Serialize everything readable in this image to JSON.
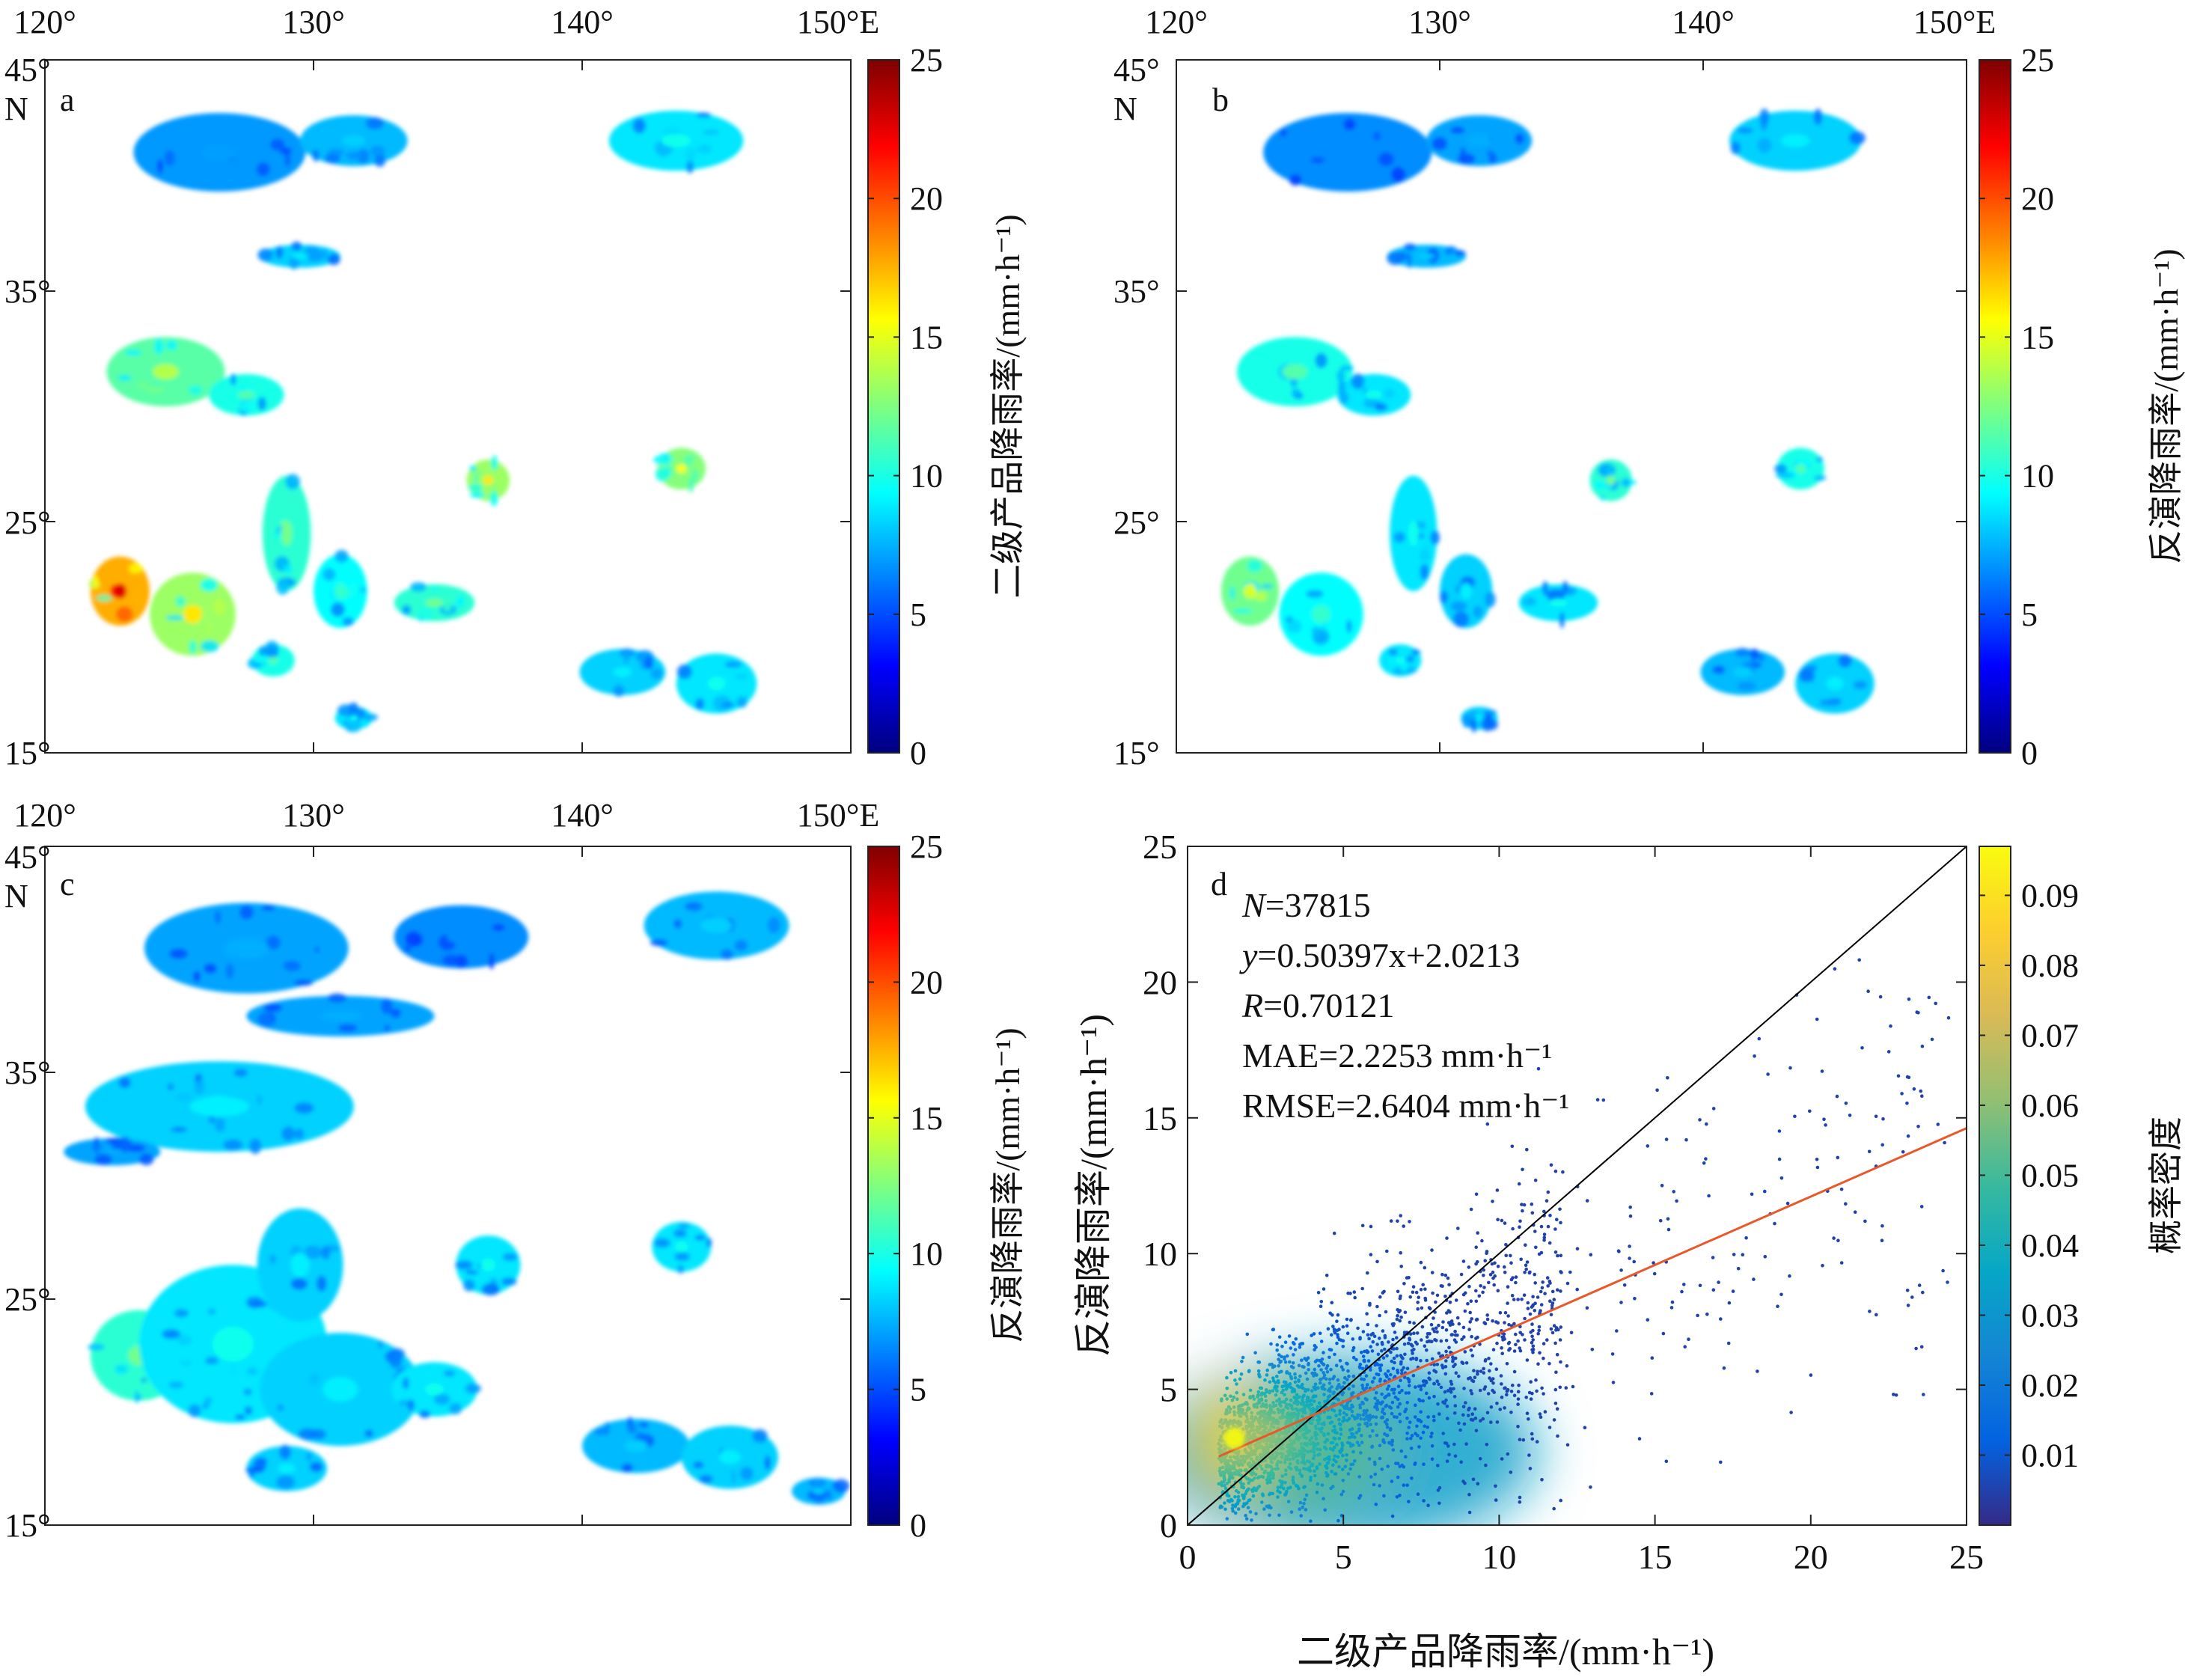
{
  "colormap_jet": [
    "#00007f",
    "#0000ff",
    "#007fff",
    "#00ffff",
    "#7fff7f",
    "#ffff00",
    "#ff7f00",
    "#ff0000",
    "#7f0000"
  ],
  "colormap_parula": [
    "#352a87",
    "#0363e1",
    "#1485d4",
    "#06a7c6",
    "#38b99e",
    "#92bf73",
    "#d9ba56",
    "#fcce2e",
    "#f9fb0e"
  ],
  "fit_line_color": "#e8582b",
  "chart_data": [
    {
      "panel": "a",
      "type": "heatmap",
      "panel_label": "a",
      "x_ticks": [
        "120°",
        "130°",
        "140°",
        "150°E"
      ],
      "y_ticks": [
        "45°",
        "35°",
        "25°",
        "15°"
      ],
      "y_top_unit": "N",
      "xlim": [
        120,
        150
      ],
      "ylim": [
        15,
        45
      ],
      "colorbar": {
        "label": "二级产品降雨率/(mm·h⁻¹)",
        "ticks": [
          "0",
          "5",
          "10",
          "15",
          "20",
          "25"
        ],
        "range": [
          0,
          25
        ],
        "colormap": "jet"
      },
      "rain_cells": [
        {
          "lon": 126.5,
          "lat": 41.0,
          "rlon": 3.2,
          "rlat": 1.7,
          "rate": 2.5
        },
        {
          "lon": 131.5,
          "lat": 41.5,
          "rlon": 2.0,
          "rlat": 1.1,
          "rate": 4.0
        },
        {
          "lon": 143.5,
          "lat": 41.5,
          "rlon": 2.5,
          "rlat": 1.3,
          "rate": 6.0
        },
        {
          "lon": 124.5,
          "lat": 31.5,
          "rlon": 2.2,
          "rlat": 1.5,
          "rate": 11.0
        },
        {
          "lon": 127.5,
          "lat": 30.5,
          "rlon": 1.4,
          "rlat": 0.9,
          "rate": 8.0
        },
        {
          "lon": 129.5,
          "lat": 36.5,
          "rlon": 1.5,
          "rlat": 0.5,
          "rate": 5.0
        },
        {
          "lon": 136.5,
          "lat": 26.8,
          "rlon": 0.8,
          "rlat": 0.9,
          "rate": 14.0
        },
        {
          "lon": 143.7,
          "lat": 27.3,
          "rlon": 0.9,
          "rlat": 0.9,
          "rate": 13.0
        },
        {
          "lon": 122.8,
          "lat": 22.0,
          "rlon": 1.1,
          "rlat": 1.5,
          "rate": 22.0
        },
        {
          "lon": 125.5,
          "lat": 21.0,
          "rlon": 1.6,
          "rlat": 1.8,
          "rate": 14.0
        },
        {
          "lon": 129.0,
          "lat": 24.5,
          "rlon": 0.9,
          "rlat": 2.5,
          "rate": 9.0
        },
        {
          "lon": 131.0,
          "lat": 22.0,
          "rlon": 1.0,
          "rlat": 1.6,
          "rate": 7.0
        },
        {
          "lon": 134.5,
          "lat": 21.5,
          "rlon": 1.5,
          "rlat": 0.8,
          "rate": 9.0
        },
        {
          "lon": 141.5,
          "lat": 18.5,
          "rlon": 1.6,
          "rlat": 1.0,
          "rate": 5.0
        },
        {
          "lon": 145.0,
          "lat": 18.0,
          "rlon": 1.5,
          "rlat": 1.3,
          "rate": 6.0
        },
        {
          "lon": 128.5,
          "lat": 19.0,
          "rlon": 0.8,
          "rlat": 0.7,
          "rate": 8.0
        },
        {
          "lon": 131.5,
          "lat": 16.5,
          "rlon": 0.7,
          "rlat": 0.5,
          "rate": 6.0
        }
      ]
    },
    {
      "panel": "b",
      "type": "heatmap",
      "panel_label": "b",
      "x_ticks": [
        "120°",
        "130°",
        "140°",
        "150°E"
      ],
      "y_ticks": [
        "45°",
        "35°",
        "25°",
        "15°"
      ],
      "y_top_unit": "N",
      "xlim": [
        120,
        150
      ],
      "ylim": [
        15,
        45
      ],
      "colorbar": {
        "label": "反演降雨率/(mm·h⁻¹)",
        "ticks": [
          "0",
          "5",
          "10",
          "15",
          "20",
          "25"
        ],
        "range": [
          0,
          25
        ],
        "colormap": "jet"
      },
      "rain_cells": [
        {
          "lon": 126.5,
          "lat": 41.0,
          "rlon": 3.2,
          "rlat": 1.7,
          "rate": 2.0
        },
        {
          "lon": 131.5,
          "lat": 41.5,
          "rlon": 2.0,
          "rlat": 1.1,
          "rate": 3.0
        },
        {
          "lon": 143.5,
          "lat": 41.5,
          "rlon": 2.5,
          "rlat": 1.3,
          "rate": 5.0
        },
        {
          "lon": 124.5,
          "lat": 31.5,
          "rlon": 2.2,
          "rlat": 1.5,
          "rate": 8.0
        },
        {
          "lon": 127.5,
          "lat": 30.5,
          "rlon": 1.4,
          "rlat": 0.9,
          "rate": 6.0
        },
        {
          "lon": 129.5,
          "lat": 36.5,
          "rlon": 1.5,
          "rlat": 0.5,
          "rate": 4.0
        },
        {
          "lon": 136.5,
          "lat": 26.8,
          "rlon": 0.8,
          "rlat": 0.9,
          "rate": 9.0
        },
        {
          "lon": 143.7,
          "lat": 27.3,
          "rlon": 0.9,
          "rlat": 0.9,
          "rate": 8.0
        },
        {
          "lon": 122.8,
          "lat": 22.0,
          "rlon": 1.1,
          "rlat": 1.5,
          "rate": 12.0
        },
        {
          "lon": 125.5,
          "lat": 21.0,
          "rlon": 1.6,
          "rlat": 1.8,
          "rate": 7.0
        },
        {
          "lon": 129.0,
          "lat": 24.5,
          "rlon": 0.9,
          "rlat": 2.5,
          "rate": 6.0
        },
        {
          "lon": 131.0,
          "lat": 22.0,
          "rlon": 1.0,
          "rlat": 1.6,
          "rate": 5.0
        },
        {
          "lon": 134.5,
          "lat": 21.5,
          "rlon": 1.5,
          "rlat": 0.8,
          "rate": 6.0
        },
        {
          "lon": 141.5,
          "lat": 18.5,
          "rlon": 1.6,
          "rlat": 1.0,
          "rate": 4.0
        },
        {
          "lon": 145.0,
          "lat": 18.0,
          "rlon": 1.5,
          "rlat": 1.3,
          "rate": 5.0
        },
        {
          "lon": 128.5,
          "lat": 19.0,
          "rlon": 0.8,
          "rlat": 0.7,
          "rate": 6.0
        },
        {
          "lon": 131.5,
          "lat": 16.5,
          "rlon": 0.7,
          "rlat": 0.5,
          "rate": 5.0
        }
      ]
    },
    {
      "panel": "c",
      "type": "heatmap",
      "panel_label": "c",
      "x_ticks": [
        "120°",
        "130°",
        "140°",
        "150°E"
      ],
      "y_ticks": [
        "45°",
        "35°",
        "25°",
        "15°"
      ],
      "y_top_unit": "N",
      "xlim": [
        120,
        150
      ],
      "ylim": [
        15,
        45
      ],
      "colorbar": {
        "label": "反演降雨率/(mm·h⁻¹)",
        "ticks": [
          "0",
          "5",
          "10",
          "15",
          "20",
          "25"
        ],
        "range": [
          0,
          25
        ],
        "colormap": "jet"
      },
      "rain_cells": [
        {
          "lon": 127.5,
          "lat": 40.5,
          "rlon": 3.8,
          "rlat": 2.0,
          "rate": 3.0
        },
        {
          "lon": 135.5,
          "lat": 41.0,
          "rlon": 2.5,
          "rlat": 1.4,
          "rate": 2.0
        },
        {
          "lon": 145.0,
          "lat": 41.5,
          "rlon": 2.7,
          "rlat": 1.5,
          "rate": 4.0
        },
        {
          "lon": 126.5,
          "lat": 33.5,
          "rlon": 5.0,
          "rlat": 2.0,
          "rate": 5.0
        },
        {
          "lon": 131.0,
          "lat": 37.5,
          "rlon": 3.5,
          "rlat": 0.9,
          "rate": 3.0
        },
        {
          "lon": 122.5,
          "lat": 31.5,
          "rlon": 1.8,
          "rlat": 0.6,
          "rate": 3.0
        },
        {
          "lon": 136.5,
          "lat": 26.5,
          "rlon": 1.2,
          "rlat": 1.3,
          "rate": 6.0
        },
        {
          "lon": 143.7,
          "lat": 27.3,
          "rlon": 1.1,
          "rlat": 1.1,
          "rate": 6.0
        },
        {
          "lon": 123.5,
          "lat": 22.5,
          "rlon": 1.8,
          "rlat": 2.0,
          "rate": 9.0
        },
        {
          "lon": 127.0,
          "lat": 23.0,
          "rlon": 3.5,
          "rlat": 3.5,
          "rate": 6.0
        },
        {
          "lon": 131.0,
          "lat": 21.0,
          "rlon": 3.0,
          "rlat": 2.5,
          "rate": 5.0
        },
        {
          "lon": 129.5,
          "lat": 26.5,
          "rlon": 1.6,
          "rlat": 2.5,
          "rate": 5.0
        },
        {
          "lon": 134.5,
          "lat": 21.0,
          "rlon": 1.6,
          "rlat": 1.2,
          "rate": 6.0
        },
        {
          "lon": 142.0,
          "lat": 18.5,
          "rlon": 2.0,
          "rlat": 1.2,
          "rate": 4.0
        },
        {
          "lon": 145.5,
          "lat": 18.0,
          "rlon": 1.8,
          "rlat": 1.4,
          "rate": 5.0
        },
        {
          "lon": 148.8,
          "lat": 16.5,
          "rlon": 1.0,
          "rlat": 0.6,
          "rate": 4.0
        },
        {
          "lon": 129.0,
          "lat": 17.5,
          "rlon": 1.5,
          "rlat": 1.0,
          "rate": 5.0
        }
      ]
    },
    {
      "panel": "d",
      "type": "scatter",
      "panel_label": "d",
      "xlabel": "二级产品降雨率/(mm·h⁻¹)",
      "ylabel": "反演降雨率/(mm·h⁻¹)",
      "xlim": [
        0,
        25
      ],
      "ylim": [
        0,
        25
      ],
      "x_ticks": [
        "0",
        "5",
        "10",
        "15",
        "20",
        "25"
      ],
      "y_ticks": [
        "0",
        "5",
        "10",
        "15",
        "20",
        "25"
      ],
      "stats": [
        {
          "key": "N",
          "value": "=37815"
        },
        {
          "key": "y",
          "value": "=0.50397x+2.0213"
        },
        {
          "key": "R",
          "value": "=0.70121"
        },
        {
          "key": "MAE",
          "value": "=2.2253 mm·h⁻¹"
        },
        {
          "key": "RMSE",
          "value": "=2.6404 mm·h⁻¹"
        }
      ],
      "fit": {
        "slope": 0.50397,
        "intercept": 2.0213,
        "x_range": [
          1,
          25
        ]
      },
      "reference_line": {
        "x": [
          0,
          25
        ],
        "y": [
          0,
          25
        ]
      },
      "density_peak": {
        "x": 1.5,
        "y": 3.2
      },
      "colorbar": {
        "label": "概率密度",
        "ticks": [
          "0.01",
          "0.02",
          "0.03",
          "0.04",
          "0.05",
          "0.06",
          "0.07",
          "0.08",
          "0.09"
        ],
        "range": [
          0.0,
          0.097
        ],
        "colormap": "parula"
      }
    }
  ]
}
